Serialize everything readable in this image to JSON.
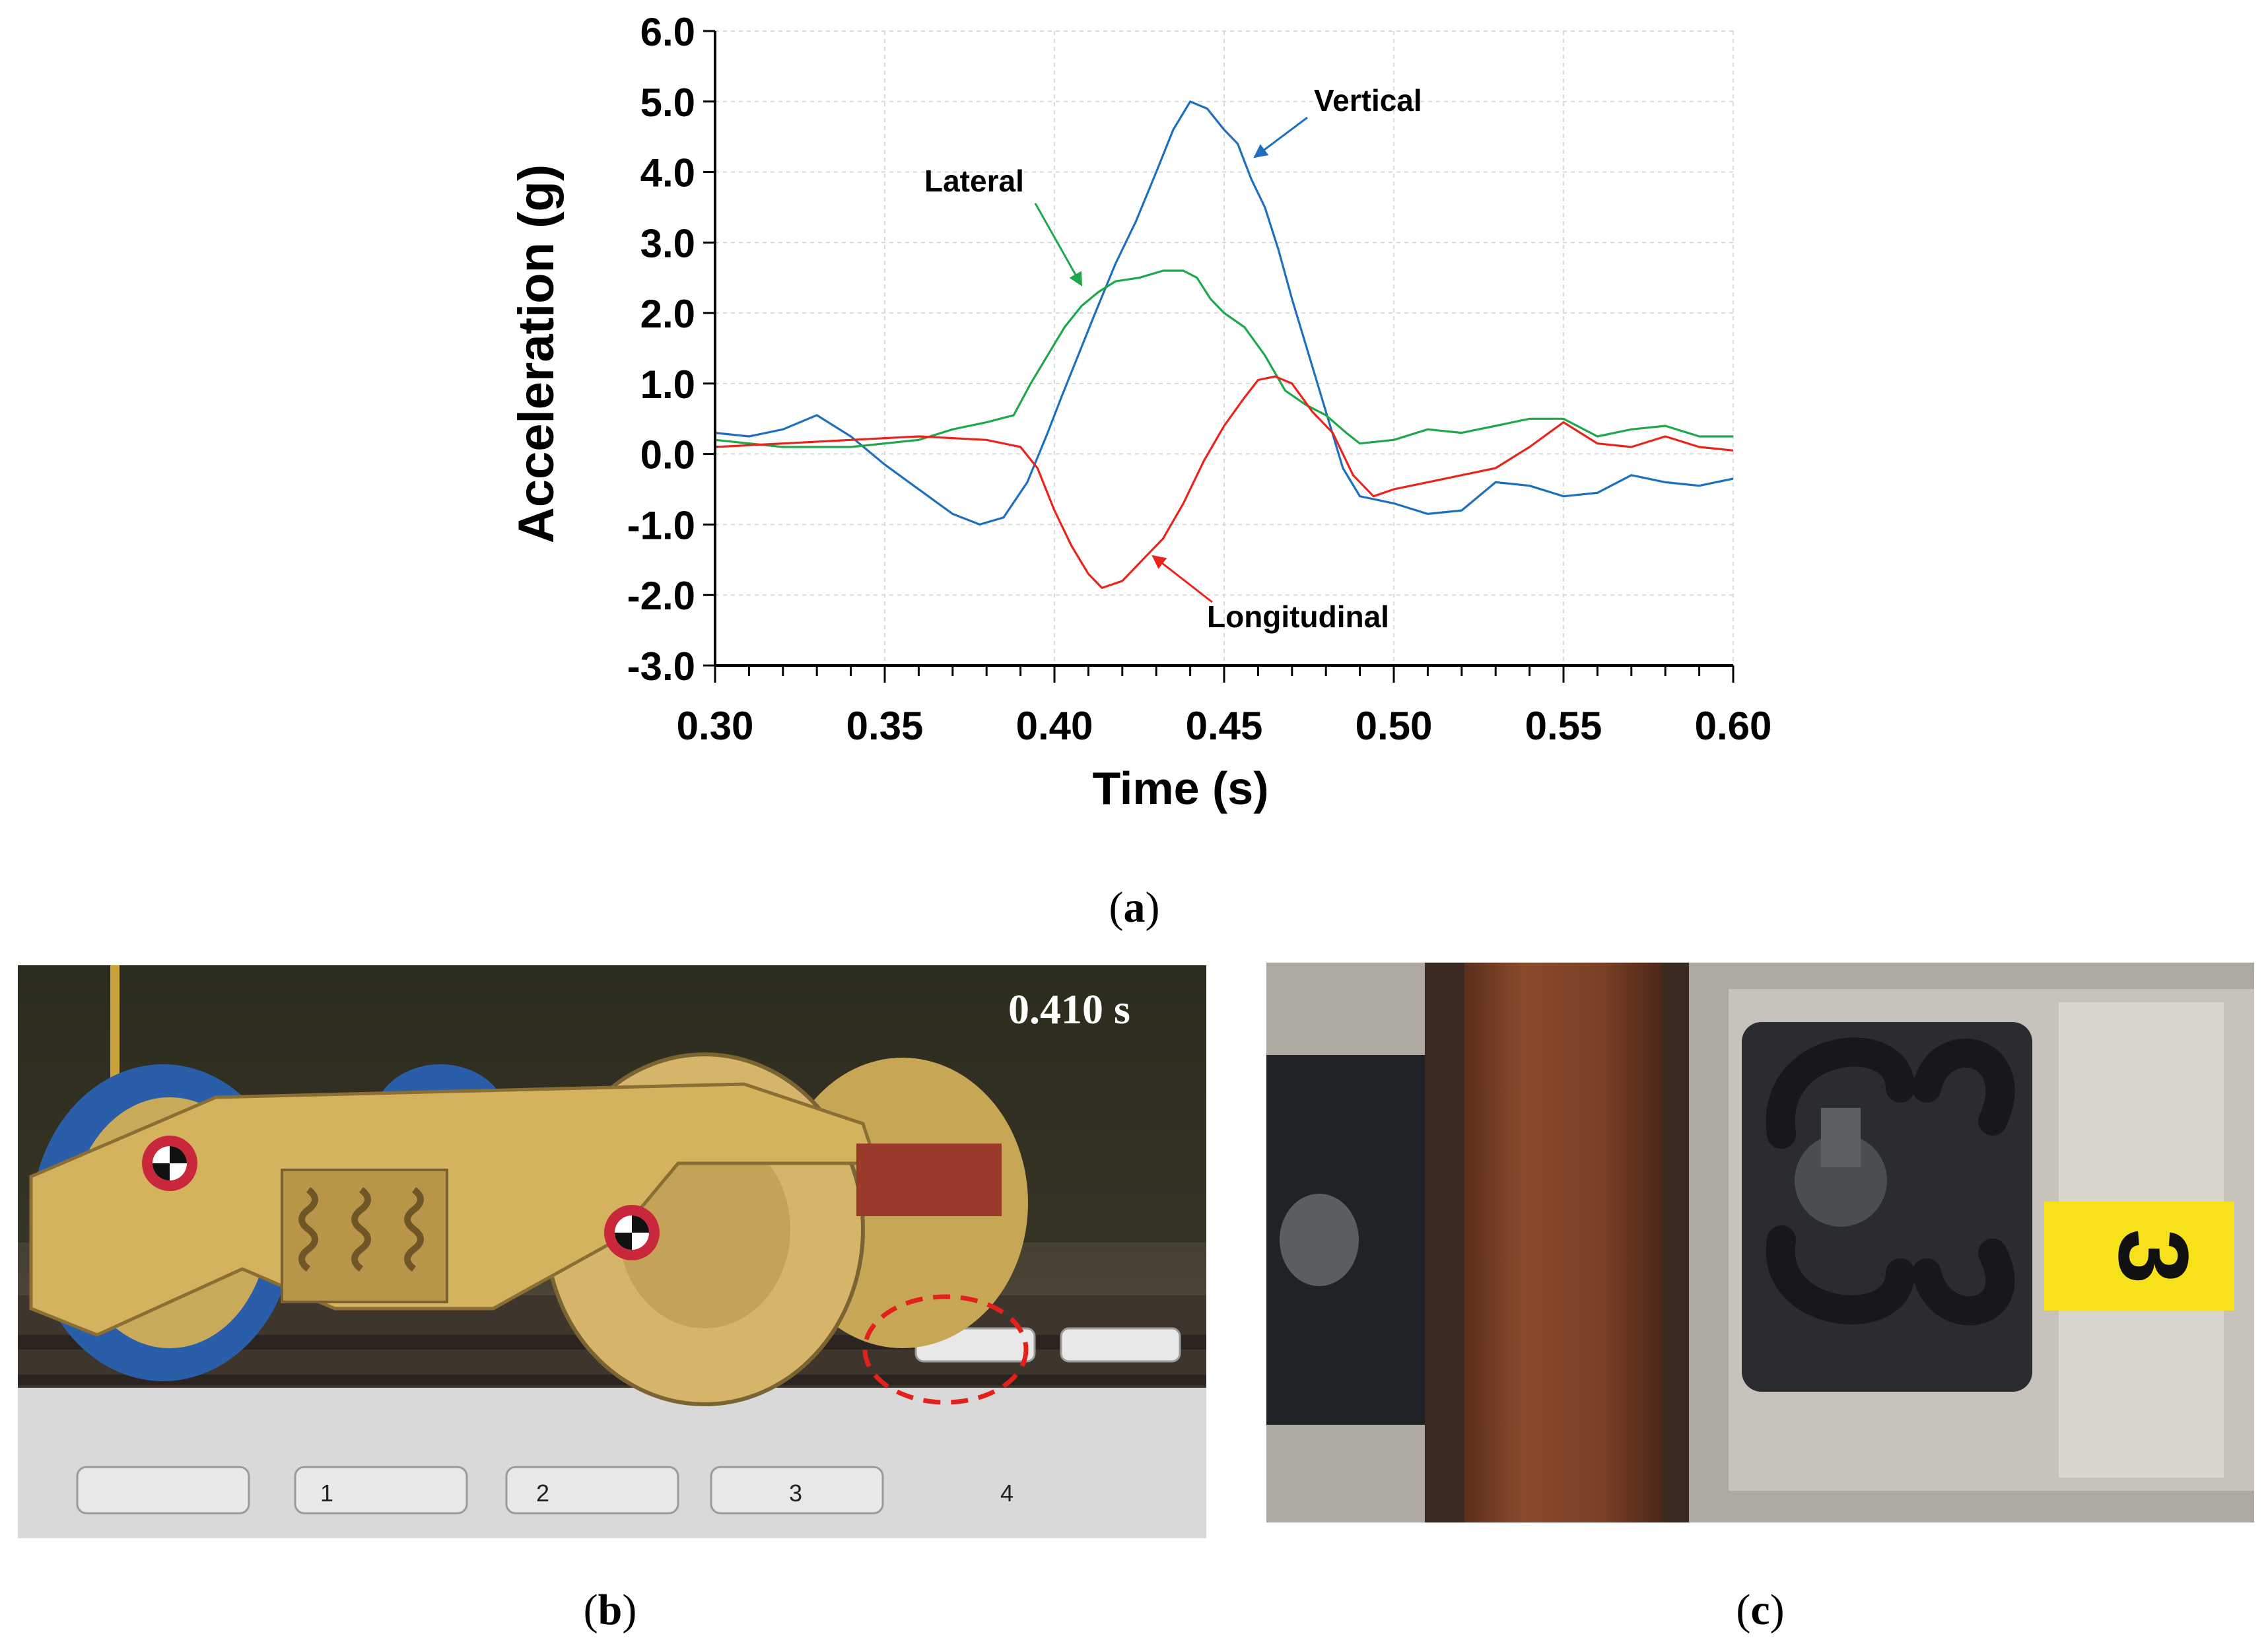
{
  "chart_data": {
    "type": "line",
    "xlabel": "Time (s)",
    "ylabel": "Acceleration (g)",
    "xlim": [
      0.3,
      0.6
    ],
    "ylim": [
      -3.0,
      6.0
    ],
    "xticks": [
      "0.30",
      "0.35",
      "0.40",
      "0.45",
      "0.50",
      "0.55",
      "0.60"
    ],
    "yticks": [
      "-3.0",
      "-2.0",
      "-1.0",
      "0.0",
      "1.0",
      "2.0",
      "3.0",
      "4.0",
      "5.0",
      "6.0"
    ],
    "grid": true,
    "series": [
      {
        "name": "Vertical",
        "color": "#1f6fc0",
        "x": [
          0.3,
          0.31,
          0.32,
          0.33,
          0.34,
          0.35,
          0.36,
          0.37,
          0.378,
          0.385,
          0.392,
          0.398,
          0.402,
          0.407,
          0.412,
          0.418,
          0.424,
          0.43,
          0.435,
          0.44,
          0.445,
          0.45,
          0.454,
          0.458,
          0.462,
          0.466,
          0.47,
          0.475,
          0.48,
          0.485,
          0.49,
          0.5,
          0.51,
          0.52,
          0.53,
          0.54,
          0.55,
          0.56,
          0.57,
          0.58,
          0.59,
          0.6
        ],
        "y": [
          0.3,
          0.25,
          0.35,
          0.55,
          0.25,
          -0.15,
          -0.5,
          -0.85,
          -1.0,
          -0.9,
          -0.4,
          0.3,
          0.8,
          1.4,
          2.0,
          2.7,
          3.3,
          4.0,
          4.6,
          5.0,
          4.9,
          4.6,
          4.4,
          3.9,
          3.5,
          2.9,
          2.2,
          1.4,
          0.6,
          -0.2,
          -0.6,
          -0.7,
          -0.85,
          -0.8,
          -0.4,
          -0.45,
          -0.6,
          -0.55,
          -0.3,
          -0.4,
          -0.45,
          -0.35
        ]
      },
      {
        "name": "Lateral",
        "color": "#1ea84a",
        "x": [
          0.3,
          0.32,
          0.34,
          0.36,
          0.37,
          0.38,
          0.388,
          0.393,
          0.398,
          0.403,
          0.408,
          0.413,
          0.418,
          0.425,
          0.432,
          0.438,
          0.442,
          0.446,
          0.45,
          0.456,
          0.462,
          0.468,
          0.474,
          0.48,
          0.486,
          0.49,
          0.5,
          0.51,
          0.52,
          0.53,
          0.54,
          0.55,
          0.56,
          0.57,
          0.58,
          0.59,
          0.6
        ],
        "y": [
          0.2,
          0.1,
          0.1,
          0.2,
          0.35,
          0.45,
          0.55,
          1.0,
          1.4,
          1.8,
          2.1,
          2.3,
          2.45,
          2.5,
          2.6,
          2.6,
          2.5,
          2.2,
          2.0,
          1.8,
          1.4,
          0.9,
          0.7,
          0.55,
          0.3,
          0.15,
          0.2,
          0.35,
          0.3,
          0.4,
          0.5,
          0.5,
          0.25,
          0.35,
          0.4,
          0.25,
          0.25
        ]
      },
      {
        "name": "Longitudinal",
        "color": "#e8241c",
        "x": [
          0.3,
          0.32,
          0.34,
          0.36,
          0.38,
          0.39,
          0.395,
          0.4,
          0.405,
          0.41,
          0.414,
          0.42,
          0.426,
          0.432,
          0.438,
          0.444,
          0.45,
          0.456,
          0.46,
          0.465,
          0.47,
          0.476,
          0.482,
          0.488,
          0.494,
          0.5,
          0.51,
          0.52,
          0.53,
          0.54,
          0.55,
          0.56,
          0.57,
          0.58,
          0.59,
          0.6
        ],
        "y": [
          0.1,
          0.15,
          0.2,
          0.25,
          0.2,
          0.1,
          -0.2,
          -0.8,
          -1.3,
          -1.7,
          -1.9,
          -1.8,
          -1.5,
          -1.2,
          -0.7,
          -0.1,
          0.4,
          0.8,
          1.05,
          1.1,
          1.0,
          0.6,
          0.3,
          -0.3,
          -0.6,
          -0.5,
          -0.4,
          -0.3,
          -0.2,
          0.1,
          0.45,
          0.15,
          0.1,
          0.25,
          0.1,
          0.05
        ]
      }
    ],
    "annotations": [
      {
        "text": "Vertical",
        "series": "Vertical"
      },
      {
        "text": "Lateral",
        "series": "Lateral"
      },
      {
        "text": "Longitudinal",
        "series": "Longitudinal"
      }
    ]
  },
  "captions": {
    "a": "a",
    "b": "b",
    "c": "c"
  },
  "photo_b": {
    "timestamp": "0.410 s",
    "sleeper_numbers": [
      "1",
      "2",
      "3",
      "4"
    ]
  },
  "photo_c": {
    "marker_number": "3"
  }
}
